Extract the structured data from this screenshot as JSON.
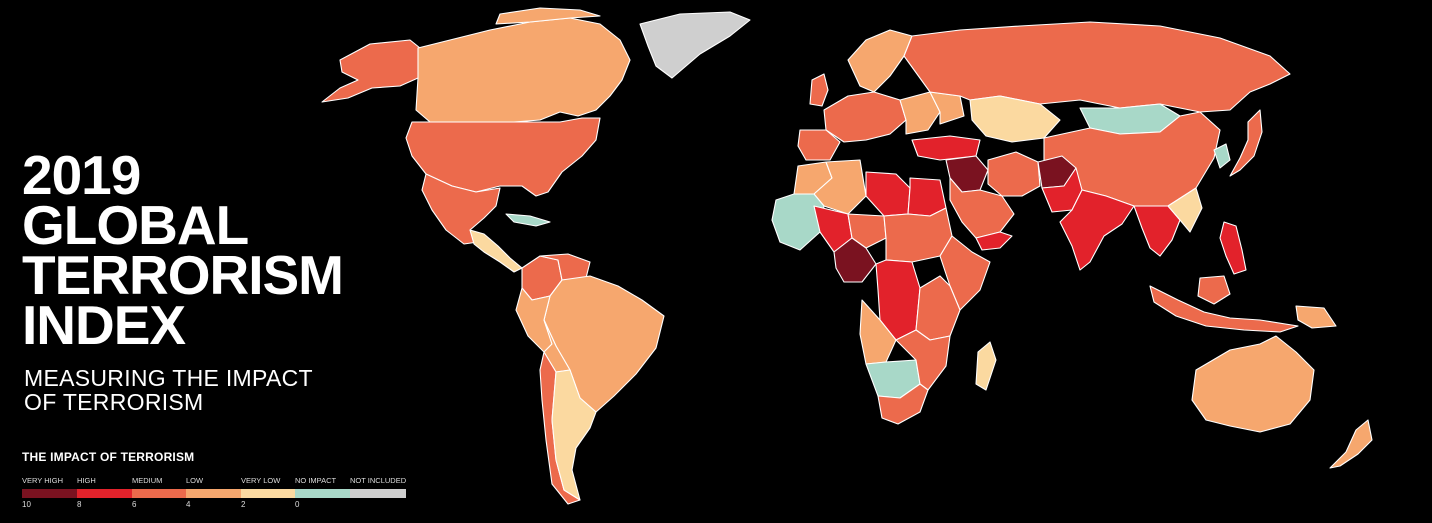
{
  "title": {
    "lines": [
      "2019",
      "GLOBAL",
      "TERRORISM",
      "INDEX"
    ]
  },
  "subtitle": {
    "lines": [
      "MEASURING THE IMPACT",
      "OF TERRORISM"
    ]
  },
  "legend": {
    "title": "THE IMPACT OF TERRORISM",
    "categories": [
      {
        "label": "VERY HIGH",
        "color": "#7a1220"
      },
      {
        "label": "HIGH",
        "color": "#e2222b"
      },
      {
        "label": "MEDIUM",
        "color": "#ec6a4c"
      },
      {
        "label": "LOW",
        "color": "#f6a76e"
      },
      {
        "label": "VERY LOW",
        "color": "#fbd9a0"
      },
      {
        "label": "NO IMPACT",
        "color": "#a8d8c8"
      },
      {
        "label": "NOT INCLUDED",
        "color": "#cfcfcf"
      }
    ],
    "ticks": [
      "10",
      "8",
      "6",
      "4",
      "2",
      "0"
    ]
  },
  "colors": {
    "background": "#000000",
    "border": "#ffffff"
  }
}
